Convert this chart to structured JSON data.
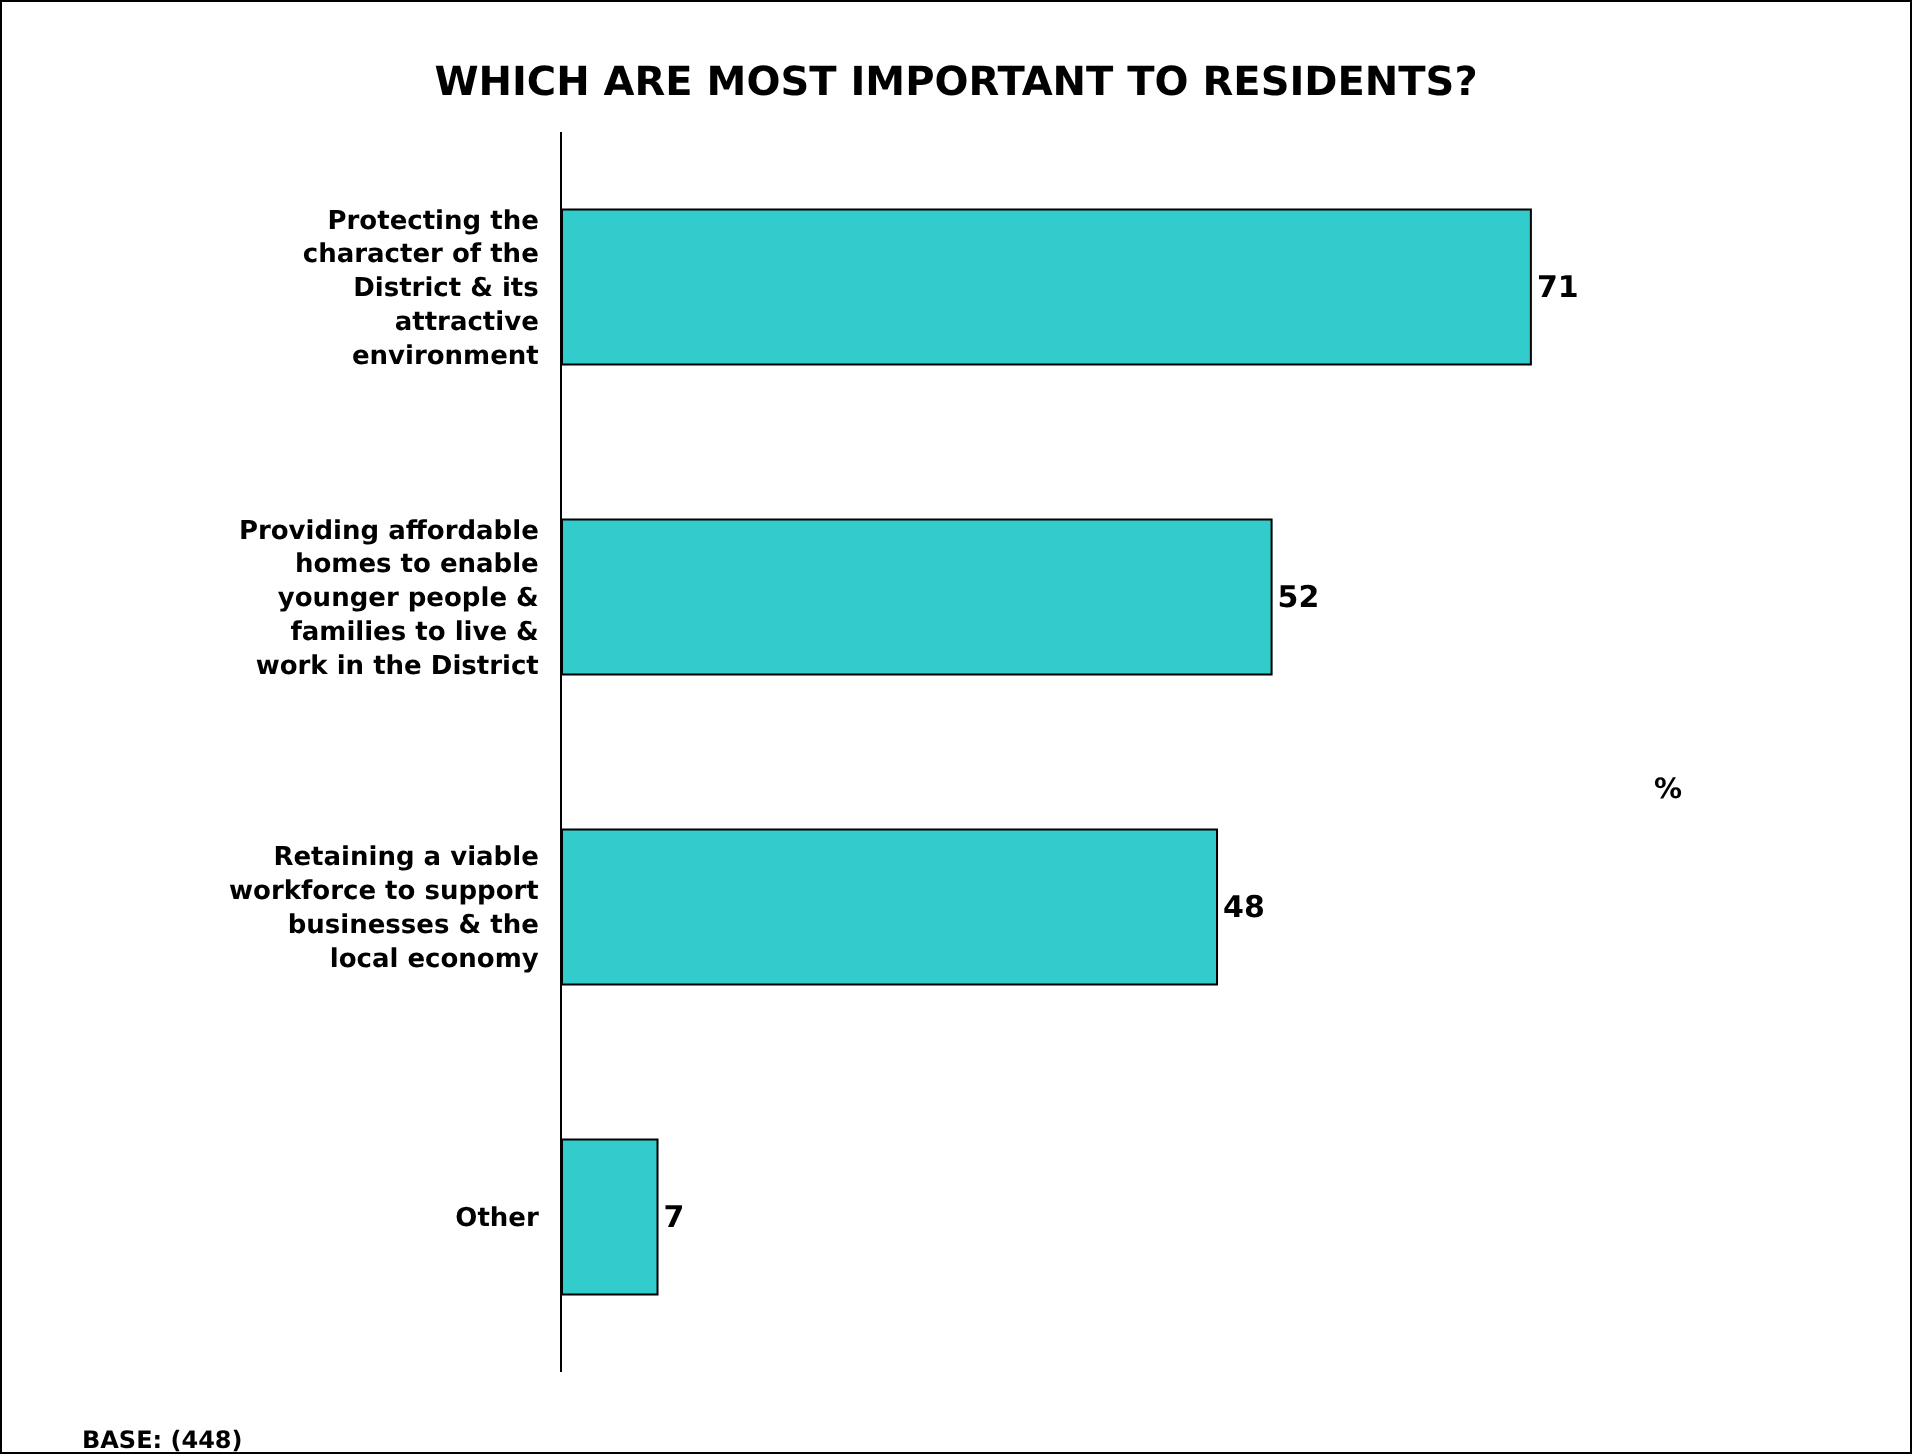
{
  "chart_data": {
    "type": "bar",
    "orientation": "horizontal",
    "title": "WHICH ARE MOST IMPORTANT TO RESIDENTS?",
    "categories": [
      "Protecting the character of the District & its attractive environment",
      "Providing affordable homes to enable younger people & families to live & work in the District",
      "Retaining a viable workforce to support businesses & the local economy",
      "Other"
    ],
    "values": [
      71,
      52,
      48,
      7
    ],
    "color": "#33cccc",
    "data_labels": true,
    "annotations": [
      "%",
      "BASE: (448)"
    ]
  }
}
